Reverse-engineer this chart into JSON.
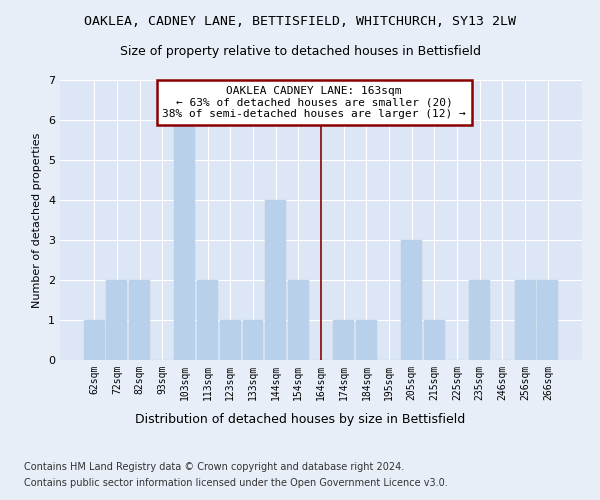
{
  "title": "OAKLEA, CADNEY LANE, BETTISFIELD, WHITCHURCH, SY13 2LW",
  "subtitle": "Size of property relative to detached houses in Bettisfield",
  "xlabel_bottom": "Distribution of detached houses by size in Bettisfield",
  "ylabel": "Number of detached properties",
  "categories": [
    "62sqm",
    "72sqm",
    "82sqm",
    "93sqm",
    "103sqm",
    "113sqm",
    "123sqm",
    "133sqm",
    "144sqm",
    "154sqm",
    "164sqm",
    "174sqm",
    "184sqm",
    "195sqm",
    "205sqm",
    "215sqm",
    "225sqm",
    "235sqm",
    "246sqm",
    "256sqm",
    "266sqm"
  ],
  "values": [
    1,
    2,
    2,
    0,
    6,
    2,
    1,
    1,
    4,
    2,
    0,
    1,
    1,
    0,
    3,
    1,
    0,
    2,
    0,
    2,
    2
  ],
  "bar_color": "#b8d0ea",
  "bar_edgecolor": "#b8d0ea",
  "vline_index": 10,
  "vline_color": "#8b0000",
  "annotation_line1": "OAKLEA CADNEY LANE: 163sqm",
  "annotation_line2": "← 63% of detached houses are smaller (20)",
  "annotation_line3": "38% of semi-detached houses are larger (12) →",
  "annotation_box_color": "#8b0000",
  "annotation_facecolor": "white",
  "ylim": [
    0,
    7
  ],
  "yticks": [
    0,
    1,
    2,
    3,
    4,
    5,
    6,
    7
  ],
  "footer_line1": "Contains HM Land Registry data © Crown copyright and database right 2024.",
  "footer_line2": "Contains public sector information licensed under the Open Government Licence v3.0.",
  "bg_color": "#e8eef8",
  "plot_bg_color": "#dce6f5",
  "grid_color": "#ffffff",
  "title_fontsize": 9.5,
  "subtitle_fontsize": 9,
  "annotation_fontsize": 8,
  "footer_fontsize": 7,
  "xlabel_bottom_fontsize": 9
}
